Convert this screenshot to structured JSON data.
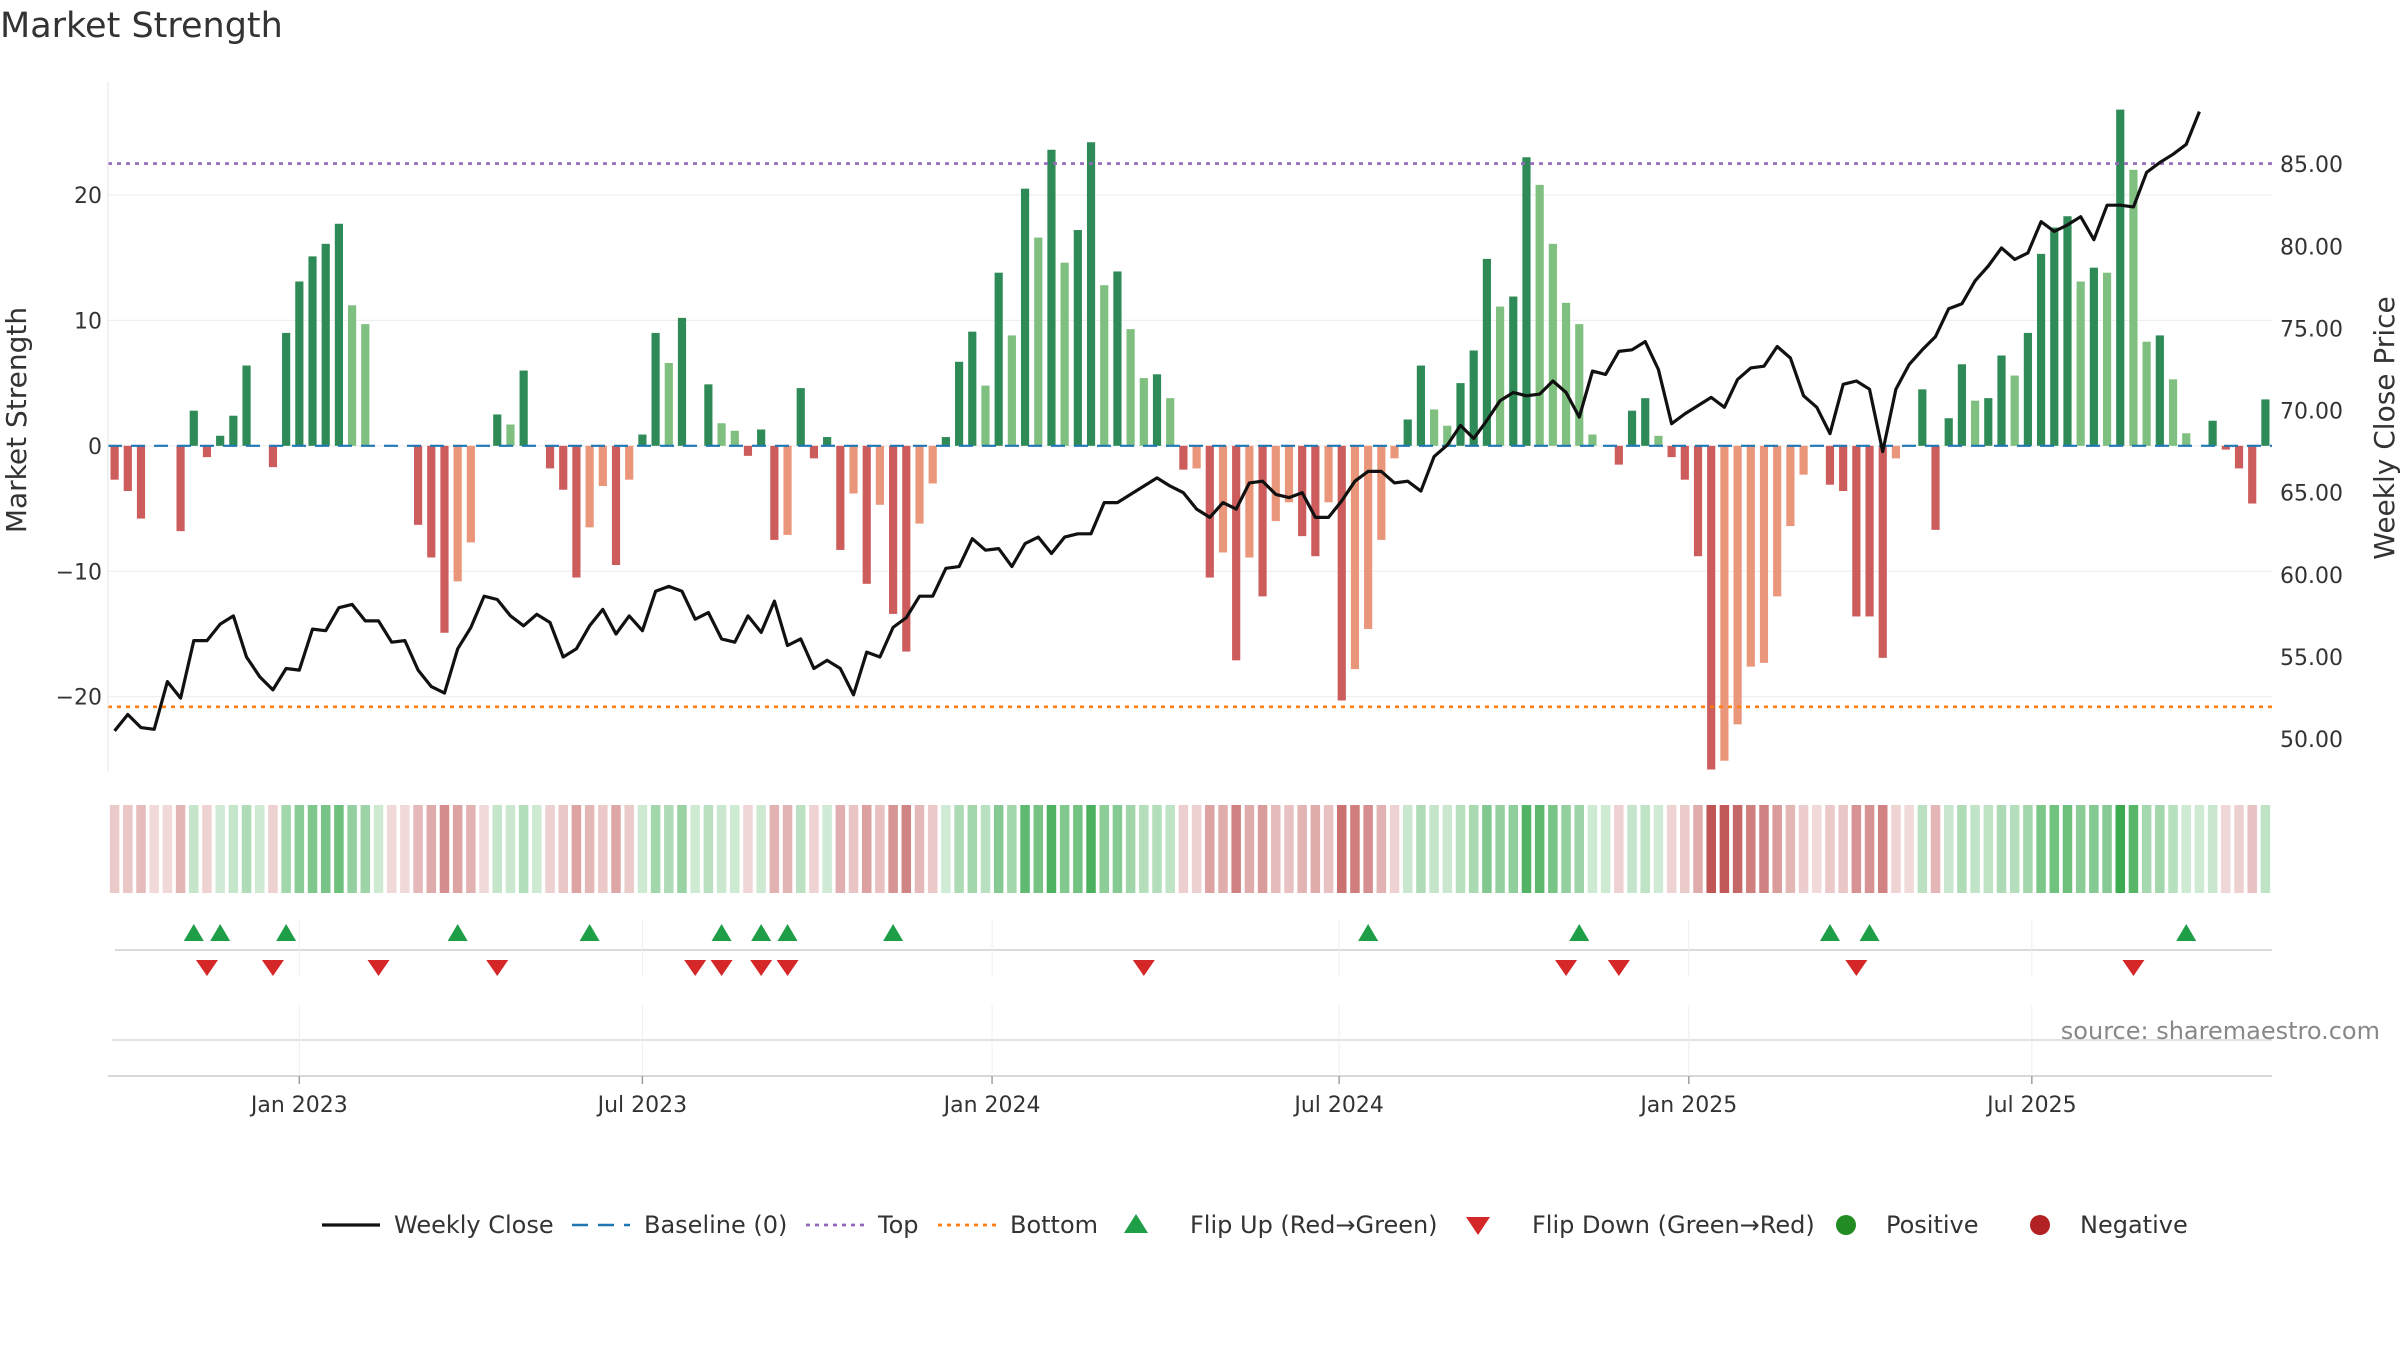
{
  "title": "Market Strength",
  "source": "source: sharemaestro.com",
  "colors": {
    "strong_green": "#2e8b57",
    "light_green": "#7fbf7f",
    "strong_red": "#cd5c5c",
    "light_red": "#e9967a",
    "line": "#111111",
    "baseline": "#1f77b4",
    "top": "#9467bd",
    "bottom": "#ff7f0e",
    "flip_up": "#1e9e46",
    "flip_down": "#d62728",
    "positive": "#228b22",
    "negative": "#b22222"
  },
  "legend": [
    {
      "key": "weekly_close",
      "label": "Weekly Close",
      "symbol": "line",
      "color": "#111111"
    },
    {
      "key": "baseline",
      "label": "Baseline (0)",
      "symbol": "dash",
      "color": "#1f77b4"
    },
    {
      "key": "top",
      "label": "Top",
      "symbol": "dot-line",
      "color": "#9467bd"
    },
    {
      "key": "bottom",
      "label": "Bottom",
      "symbol": "dot-line",
      "color": "#ff7f0e"
    },
    {
      "key": "flip_up",
      "label": "Flip Up (Red→Green)",
      "symbol": "triangle-up",
      "color": "#1e9e46"
    },
    {
      "key": "flip_down",
      "label": "Flip Down (Green→Red)",
      "symbol": "triangle-down",
      "color": "#d62728"
    },
    {
      "key": "positive",
      "label": "Positive",
      "symbol": "circle",
      "color": "#228b22"
    },
    {
      "key": "negative",
      "label": "Negative",
      "symbol": "circle",
      "color": "#b22222"
    }
  ],
  "chart_data": {
    "type": "bar",
    "title": "Market Strength",
    "ylabel": "Market Strength",
    "y2label": "Weekly Close Price",
    "ylim": [
      -26,
      29
    ],
    "y2lim": [
      48,
      90
    ],
    "yticks": [
      -20,
      -10,
      0,
      10,
      20
    ],
    "ytick_labels": [
      "−20",
      "−10",
      "0",
      "10",
      "20"
    ],
    "y2ticks": [
      50,
      55,
      60,
      65,
      70,
      75,
      80,
      85
    ],
    "y2tick_labels": [
      "50.00",
      "55.00",
      "60.00",
      "65.00",
      "70.00",
      "75.00",
      "80.00",
      "85.00"
    ],
    "x_ticks": [
      {
        "week": 14.5,
        "label": "Jan 2023"
      },
      {
        "week": 40.5,
        "label": "Jul 2023"
      },
      {
        "week": 67,
        "label": "Jan 2024"
      },
      {
        "week": 93.3,
        "label": "Jul 2024"
      },
      {
        "week": 119.8,
        "label": "Jan 2025"
      },
      {
        "week": 145.8,
        "label": "Jul 2025"
      }
    ],
    "top_level": 22.5,
    "bottom_level": -20.8,
    "grid": true,
    "legend_position": "bottom",
    "strength": [
      -2.7,
      -3.6,
      -5.8,
      0,
      0,
      -6.8,
      2.8,
      -0.9,
      0.8,
      2.4,
      6.4,
      0,
      -1.7,
      9,
      13.1,
      15.1,
      16.1,
      17.7,
      11.2,
      9.7,
      0,
      0,
      0,
      -6.3,
      -8.9,
      -14.9,
      -10.8,
      -7.7,
      0,
      2.5,
      1.7,
      6,
      0,
      -1.8,
      -3.5,
      -10.5,
      -6.5,
      -3.2,
      -9.5,
      -2.7,
      0.9,
      9,
      6.6,
      10.2,
      0,
      4.9,
      1.8,
      1.2,
      -0.8,
      1.3,
      -7.5,
      -7.1,
      4.6,
      -1,
      0.7,
      -8.3,
      -3.8,
      -11,
      -4.7,
      -13.4,
      -16.4,
      -6.2,
      -3,
      0.7,
      6.7,
      9.1,
      4.8,
      13.8,
      8.8,
      20.5,
      16.6,
      23.6,
      14.6,
      17.2,
      24.2,
      12.8,
      13.9,
      9.3,
      5.4,
      5.7,
      3.8,
      -1.9,
      -1.8,
      -10.5,
      -8.5,
      -17.1,
      -8.9,
      -12,
      -6,
      -4.5,
      -7.2,
      -8.8,
      -4.5,
      -20.3,
      -17.8,
      -14.6,
      -7.5,
      -1,
      2.1,
      6.4,
      2.9,
      1.6,
      5,
      7.6,
      14.9,
      11.1,
      11.9,
      23,
      20.8,
      16.1,
      11.4,
      9.7,
      0.9,
      0,
      -1.5,
      2.8,
      3.8,
      0.8,
      -0.9,
      -2.7,
      -8.8,
      -25.8,
      -25.1,
      -22.2,
      -17.6,
      -17.3,
      -12,
      -6.4,
      -2.3,
      0,
      -3.1,
      -3.6,
      -13.6,
      -13.6,
      -16.9,
      -1,
      0,
      4.5,
      -6.7,
      2.2,
      6.5,
      3.6,
      3.8,
      7.2,
      5.6,
      9,
      15.3,
      17.4,
      18.3,
      13.1,
      14.2,
      13.8,
      26.8,
      22,
      8.3,
      8.8,
      5.3,
      1,
      0,
      2,
      -0.3,
      -1.8,
      -4.6,
      3.7
    ],
    "weekly_close": [
      50.5,
      51.5,
      50.7,
      50.6,
      53.5,
      52.5,
      56,
      56,
      57,
      57.5,
      55,
      53.8,
      53,
      54.3,
      54.2,
      56.7,
      56.6,
      58,
      58.2,
      57.2,
      57.2,
      55.9,
      56,
      54.2,
      53.2,
      52.8,
      55.5,
      56.8,
      58.7,
      58.5,
      57.5,
      56.9,
      57.6,
      57.1,
      55,
      55.5,
      56.9,
      57.9,
      56.4,
      57.5,
      56.6,
      59,
      59.3,
      59,
      57.3,
      57.7,
      56.1,
      55.9,
      57.5,
      56.5,
      58.4,
      55.7,
      56.1,
      54.3,
      54.8,
      54.3,
      52.7,
      55.3,
      55,
      56.8,
      57.4,
      58.7,
      58.7,
      60.4,
      60.5,
      62.2,
      61.5,
      61.6,
      60.5,
      61.9,
      62.3,
      61.3,
      62.3,
      62.5,
      62.5,
      64.4,
      64.4,
      64.9,
      65.4,
      65.9,
      65.4,
      65,
      64,
      63.5,
      64.4,
      64,
      65.6,
      65.7,
      64.9,
      64.7,
      65,
      63.5,
      63.5,
      64.5,
      65.7,
      66.3,
      66.3,
      65.6,
      65.7,
      65.1,
      67.2,
      67.9,
      69.1,
      68.3,
      69.4,
      70.6,
      71.1,
      70.9,
      71,
      71.8,
      71.1,
      69.6,
      72.4,
      72.2,
      73.6,
      73.7,
      74.2,
      72.5,
      69.2,
      69.8,
      70.3,
      70.8,
      70.2,
      71.9,
      72.6,
      72.7,
      73.9,
      73.2,
      70.9,
      70.2,
      68.6,
      71.6,
      71.8,
      71.3,
      67.5,
      71.3,
      72.8,
      73.7,
      74.5,
      76.2,
      76.5,
      77.9,
      78.8,
      79.9,
      79.2,
      79.6,
      81.5,
      80.9,
      81.3,
      81.8,
      80.4,
      82.5,
      82.5,
      82.4,
      84.5,
      85.1,
      85.6,
      86.2,
      88.2
    ],
    "flip_up_weeks": [
      6,
      8,
      13,
      26,
      36,
      46,
      49,
      51,
      59,
      95,
      111,
      130,
      133,
      157
    ],
    "flip_down_weeks": [
      7,
      12,
      20,
      29,
      44,
      46,
      49,
      51,
      78,
      110,
      114,
      132,
      153
    ]
  }
}
